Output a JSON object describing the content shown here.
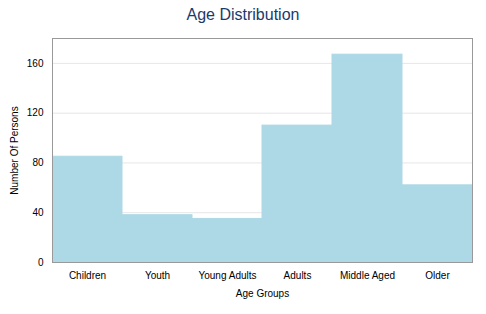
{
  "chart_data": {
    "type": "bar",
    "title": "Age Distribution",
    "xlabel": "Age Groups",
    "ylabel": "Number Of Persons",
    "categories": [
      "Children",
      "Youth",
      "Young Adults",
      "Adults",
      "Middle Aged",
      "Older"
    ],
    "values": [
      85,
      38,
      35,
      110,
      167,
      62
    ],
    "color": "#add8e6",
    "ylim": [
      0,
      180
    ],
    "yticks": [
      0,
      40,
      80,
      120,
      160
    ],
    "grid": true
  }
}
